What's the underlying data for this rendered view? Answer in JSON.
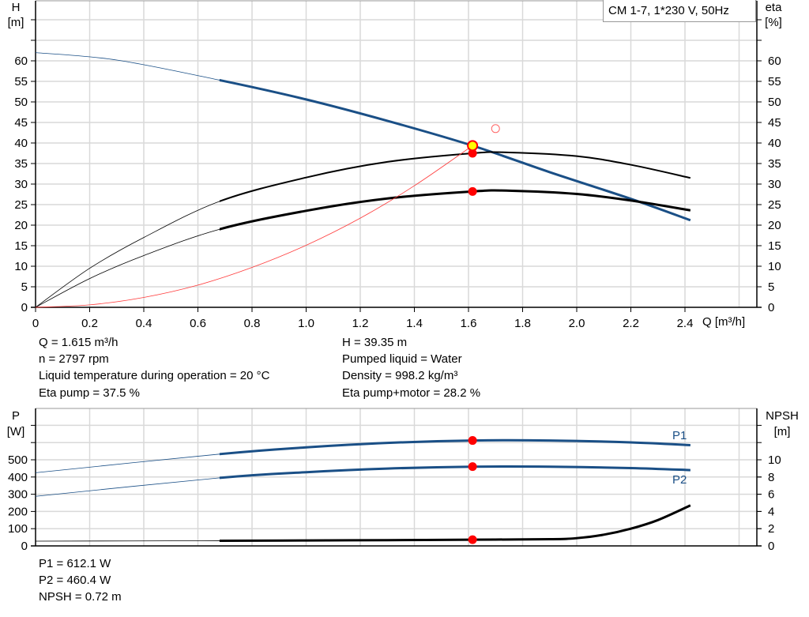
{
  "chart_data": [
    {
      "type": "line",
      "legend_box": "CM 1-7, 1*230 V, 50Hz",
      "ylabel_left": [
        "H",
        "[m]"
      ],
      "ylabel_right": [
        "eta",
        "[%]"
      ],
      "xlabel": "Q [m³/h]",
      "xlim": [
        0,
        2.6
      ],
      "ylim": [
        0,
        75
      ],
      "x_ticks": [
        "0",
        "0.2",
        "0.4",
        "0.6",
        "0.8",
        "1.0",
        "1.2",
        "1.4",
        "1.6",
        "1.8",
        "2.0",
        "2.2",
        "2.4"
      ],
      "y_ticks": [
        "0",
        "5",
        "10",
        "15",
        "20",
        "25",
        "30",
        "35",
        "40",
        "45",
        "50",
        "55",
        "60"
      ],
      "grid": true,
      "series": [
        {
          "id": "H",
          "color": "#1a4f86",
          "thick_from": 0.68,
          "x": [
            0,
            0.3,
            0.68,
            1.0,
            1.3,
            1.615,
            1.9,
            2.2,
            2.42
          ],
          "y": [
            62,
            60.2,
            55.3,
            50.6,
            45.4,
            39.35,
            32.9,
            26.4,
            21.2
          ]
        },
        {
          "id": "eta_pump",
          "color": "#000000",
          "thick_from": 0.68,
          "x": [
            0,
            0.2,
            0.4,
            0.68,
            1.0,
            1.3,
            1.615,
            1.75,
            2.0,
            2.2,
            2.42
          ],
          "y": [
            0,
            9.5,
            17,
            25.8,
            31.6,
            35.4,
            37.5,
            37.7,
            36.8,
            34.7,
            31.5
          ]
        },
        {
          "id": "eta_pump_motor",
          "color": "#000000",
          "thick_from": 0.68,
          "x": [
            0,
            0.2,
            0.4,
            0.68,
            1.0,
            1.3,
            1.615,
            1.75,
            2.0,
            2.2,
            2.42
          ],
          "y": [
            0,
            7,
            12.6,
            19,
            23.5,
            26.5,
            28.2,
            28.4,
            27.6,
            26,
            23.6
          ]
        },
        {
          "id": "system_curve",
          "color": "#ff3b3b",
          "thick_from": null,
          "x": [
            0,
            0.2,
            0.4,
            0.6,
            0.8,
            1.0,
            1.2,
            1.4,
            1.615
          ],
          "y": [
            0,
            0.6,
            2.4,
            5.4,
            9.7,
            15.1,
            21.7,
            29.6,
            39.35
          ]
        }
      ],
      "markers": [
        {
          "x": 1.615,
          "y": 37.5,
          "style": "red"
        },
        {
          "x": 1.615,
          "y": 28.2,
          "style": "red"
        },
        {
          "x": 1.615,
          "y": 39.35,
          "style": "yellow"
        },
        {
          "x": 1.7,
          "y": 43.5,
          "style": "open"
        }
      ]
    },
    {
      "type": "line",
      "ylabel_left": [
        "P",
        "[W]"
      ],
      "ylabel_right": [
        "NPSH",
        "[m]"
      ],
      "xlim": [
        0,
        2.6
      ],
      "ylim": [
        0,
        800
      ],
      "y_ticks": [
        "0",
        "100",
        "200",
        "300",
        "400",
        "500"
      ],
      "y2_ticks": [
        "0",
        "2",
        "4",
        "6",
        "8",
        "10"
      ],
      "grid": true,
      "series": [
        {
          "id": "P1",
          "name": "P1",
          "color": "#1a4f86",
          "thick_from": 0.68,
          "x": [
            0,
            0.68,
            1.0,
            1.3,
            1.615,
            1.9,
            2.2,
            2.42
          ],
          "y": [
            425,
            533,
            572,
            598,
            612,
            612,
            601,
            585
          ]
        },
        {
          "id": "P2",
          "name": "P2",
          "color": "#1a4f86",
          "thick_from": 0.68,
          "x": [
            0,
            0.68,
            1.0,
            1.3,
            1.615,
            1.9,
            2.2,
            2.42
          ],
          "y": [
            288,
            395,
            428,
            449,
            460,
            460,
            452,
            440
          ]
        },
        {
          "id": "NPSH",
          "color": "#000000",
          "thick_from": 0.68,
          "axis": "right",
          "x": [
            0,
            0.68,
            1.0,
            1.3,
            1.615,
            1.9,
            2.0,
            2.1,
            2.2,
            2.3,
            2.42
          ],
          "y": [
            0.55,
            0.6,
            0.63,
            0.67,
            0.72,
            0.78,
            0.9,
            1.3,
            2.0,
            3.0,
            4.7
          ]
        }
      ],
      "markers": [
        {
          "x": 1.615,
          "y": 612.1,
          "style": "red"
        },
        {
          "x": 1.615,
          "y": 460.4,
          "style": "red"
        },
        {
          "x": 1.615,
          "y": 0.72,
          "style": "red",
          "axis": "right"
        }
      ]
    }
  ],
  "info_top": {
    "left": [
      "Q = 1.615 m³/h",
      "n = 2797 rpm",
      "Liquid temperature during operation = 20 °C",
      "Eta pump = 37.5 %"
    ],
    "right": [
      "H = 39.35 m",
      "Pumped liquid = Water",
      "Density = 998.2 kg/m³",
      "Eta pump+motor = 28.2 %"
    ]
  },
  "info_bottom": [
    "P1 = 612.1 W",
    "P2 = 460.4 W",
    "NPSH = 0.72 m"
  ]
}
